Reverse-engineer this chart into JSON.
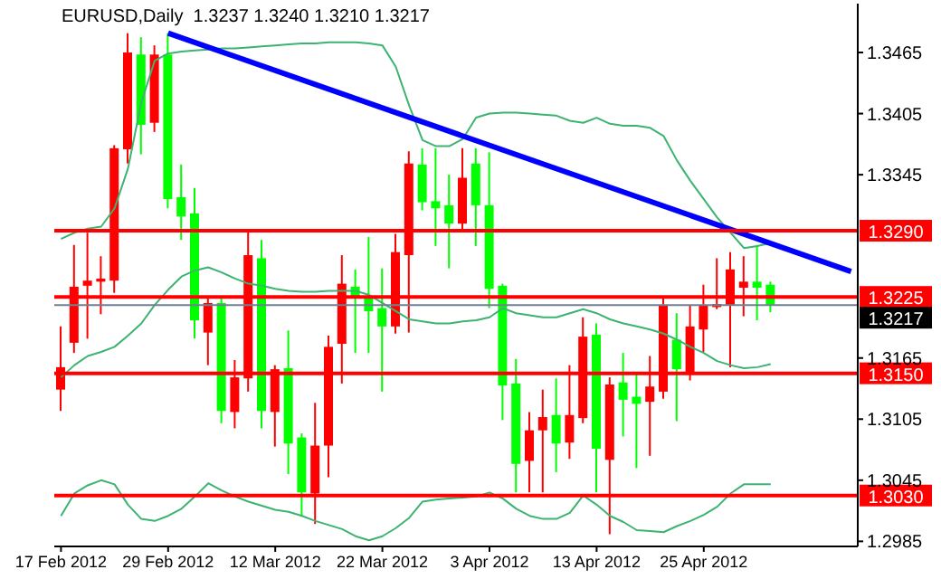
{
  "chart_data": {
    "type": "candlestick",
    "title": "EURUSD,Daily  1.3237 1.3240 1.3210 1.3217",
    "categories": [
      "17 Feb 2012",
      null,
      null,
      null,
      null,
      null,
      null,
      null,
      "29 Feb 2012",
      null,
      null,
      null,
      null,
      null,
      null,
      null,
      "12 Mar 2012",
      null,
      null,
      null,
      null,
      null,
      null,
      null,
      "22 Mar 2012",
      null,
      null,
      null,
      null,
      null,
      null,
      null,
      "3 Apr 2012",
      null,
      null,
      null,
      null,
      null,
      null,
      null,
      "13 Apr 2012",
      null,
      null,
      null,
      null,
      null,
      null,
      null,
      "25 Apr 2012",
      null,
      null,
      null,
      null,
      null,
      null,
      null,
      null,
      null,
      null,
      null
    ],
    "ohlc": [
      [
        1.3134,
        1.3196,
        1.3113,
        1.3156
      ],
      [
        1.318,
        1.3276,
        1.317,
        1.3235
      ],
      [
        1.3236,
        1.3288,
        1.3184,
        1.3241
      ],
      [
        1.324,
        1.3265,
        1.3208,
        1.3243
      ],
      [
        1.3241,
        1.3374,
        1.3229,
        1.3371
      ],
      [
        1.337,
        1.3484,
        1.3356,
        1.3465
      ],
      [
        1.3463,
        1.348,
        1.3365,
        1.3394
      ],
      [
        1.3396,
        1.3472,
        1.3387,
        1.3463
      ],
      [
        1.3463,
        1.3484,
        1.3312,
        1.3321
      ],
      [
        1.3323,
        1.3355,
        1.3281,
        1.3304
      ],
      [
        1.3307,
        1.3332,
        1.3184,
        1.3202
      ],
      [
        1.319,
        1.3226,
        1.3158,
        1.3219
      ],
      [
        1.3219,
        1.3226,
        1.3101,
        1.3113
      ],
      [
        1.3112,
        1.3163,
        1.3096,
        1.3146
      ],
      [
        1.3145,
        1.3289,
        1.3132,
        1.3266
      ],
      [
        1.3263,
        1.3281,
        1.3096,
        1.3113
      ],
      [
        1.3112,
        1.3158,
        1.3078,
        1.3154
      ],
      [
        1.3155,
        1.3192,
        1.3051,
        1.3081
      ],
      [
        1.3087,
        1.3091,
        1.301,
        1.3033
      ],
      [
        1.3032,
        1.3121,
        1.3002,
        1.3079
      ],
      [
        1.3079,
        1.3187,
        1.3048,
        1.3176
      ],
      [
        1.3179,
        1.3266,
        1.314,
        1.3238
      ],
      [
        1.3235,
        1.3252,
        1.317,
        1.3224
      ],
      [
        1.3226,
        1.3284,
        1.317,
        1.3211
      ],
      [
        1.3214,
        1.3253,
        1.3132,
        1.3196
      ],
      [
        1.3196,
        1.3287,
        1.3189,
        1.3269
      ],
      [
        1.3266,
        1.3368,
        1.319,
        1.3356
      ],
      [
        1.3355,
        1.3371,
        1.331,
        1.3318
      ],
      [
        1.3319,
        1.3371,
        1.3275,
        1.3312
      ],
      [
        1.3315,
        1.3345,
        1.3253,
        1.3297
      ],
      [
        1.3297,
        1.3371,
        1.3291,
        1.3342
      ],
      [
        1.3356,
        1.3371,
        1.3275,
        1.3315
      ],
      [
        1.3315,
        1.3367,
        1.3214,
        1.3233
      ],
      [
        1.3236,
        1.3238,
        1.3104,
        1.3138
      ],
      [
        1.314,
        1.3164,
        1.3033,
        1.3061
      ],
      [
        1.3064,
        1.3112,
        1.3033,
        1.3094
      ],
      [
        1.3094,
        1.3134,
        1.3033,
        1.3107
      ],
      [
        1.3109,
        1.3145,
        1.3053,
        1.3081
      ],
      [
        1.3082,
        1.3158,
        1.3066,
        1.3109
      ],
      [
        1.3106,
        1.3205,
        1.3101,
        1.3186
      ],
      [
        1.3188,
        1.3199,
        1.3033,
        1.3076
      ],
      [
        1.3065,
        1.3146,
        1.2992,
        1.3139
      ],
      [
        1.3141,
        1.317,
        1.3088,
        1.3124
      ],
      [
        1.3127,
        1.3149,
        1.3057,
        1.312
      ],
      [
        1.3122,
        1.3167,
        1.3069,
        1.3137
      ],
      [
        1.3132,
        1.3226,
        1.3125,
        1.3217
      ],
      [
        1.3183,
        1.3209,
        1.3103,
        1.3154
      ],
      [
        1.315,
        1.3217,
        1.3143,
        1.3196
      ],
      [
        1.3193,
        1.3237,
        1.3171,
        1.3217
      ],
      [
        1.3215,
        1.3263,
        1.3213,
        1.3218
      ],
      [
        1.3217,
        1.3269,
        1.3156,
        1.3252
      ],
      [
        1.3234,
        1.3265,
        1.3206,
        1.324
      ],
      [
        1.324,
        1.3276,
        1.3202,
        1.3234
      ],
      [
        1.3237,
        1.324,
        1.321,
        1.3217
      ],
      null,
      null,
      null,
      null,
      null,
      null
    ],
    "colors": [
      "#ff0000",
      "#ff0000",
      "#ff0000",
      "#ff0000",
      "#ff0000",
      "#ff0000",
      "#00ff00",
      "#ff0000",
      "#00ff00",
      "#00ff00",
      "#00ff00",
      "#ff0000",
      "#00ff00",
      "#ff0000",
      "#ff0000",
      "#00ff00",
      "#ff0000",
      "#00ff00",
      "#00ff00",
      "#ff0000",
      "#ff0000",
      "#ff0000",
      "#00ff00",
      "#00ff00",
      "#00ff00",
      "#ff0000",
      "#ff0000",
      "#00ff00",
      "#00ff00",
      "#00ff00",
      "#ff0000",
      "#00ff00",
      "#00ff00",
      "#00ff00",
      "#00ff00",
      "#ff0000",
      "#ff0000",
      "#00ff00",
      "#ff0000",
      "#ff0000",
      "#00ff00",
      "#ff0000",
      "#00ff00",
      "#00ff00",
      "#ff0000",
      "#ff0000",
      "#00ff00",
      "#ff0000",
      "#ff0000",
      "#ff0000",
      "#ff0000",
      "#ff0000",
      "#00ff00",
      "#00ff00",
      null,
      null,
      null,
      null,
      null,
      null
    ],
    "series": [
      {
        "type": "line",
        "color": "#3cb371",
        "values": [
          1.3282,
          1.3288,
          1.3292,
          1.3294,
          1.3312,
          1.3351,
          1.3416,
          1.3457,
          1.3464,
          1.3466,
          1.3467,
          1.3468,
          1.3469,
          1.3469,
          1.347,
          1.3471,
          1.3472,
          1.3473,
          1.3474,
          1.3474,
          1.3475,
          1.3475,
          1.3475,
          1.3474,
          1.3472,
          1.3451,
          1.3413,
          1.3379,
          1.3373,
          1.3373,
          1.338,
          1.3401,
          1.3405,
          1.3406,
          1.3406,
          1.3405,
          1.3404,
          1.3403,
          1.3398,
          1.3396,
          1.3401,
          1.3395,
          1.3393,
          1.3393,
          1.3391,
          1.3383,
          1.3359,
          1.3339,
          1.3321,
          1.3303,
          1.3288,
          1.3273,
          1.3275,
          1.3278,
          null,
          null,
          null,
          null,
          null,
          null
        ]
      },
      {
        "type": "line",
        "color": "#3cb371",
        "values": [
          1.3146,
          1.3158,
          1.3167,
          1.3171,
          1.3176,
          1.3187,
          1.3199,
          1.3217,
          1.3232,
          1.3245,
          1.3251,
          1.3254,
          1.3249,
          1.3243,
          1.3238,
          1.3236,
          1.3233,
          1.3231,
          1.323,
          1.323,
          1.3231,
          1.3231,
          1.3231,
          1.3227,
          1.3219,
          1.3211,
          1.3203,
          1.3201,
          1.3199,
          1.3199,
          1.3201,
          1.3202,
          1.3205,
          1.3214,
          1.3209,
          1.3207,
          1.3205,
          1.3205,
          1.3209,
          1.3213,
          1.3209,
          1.3203,
          1.3199,
          1.3196,
          1.3193,
          1.3189,
          1.3183,
          1.3176,
          1.317,
          1.3162,
          1.3158,
          1.3155,
          1.3156,
          1.3159,
          null,
          null,
          null,
          null,
          null,
          null
        ]
      },
      {
        "type": "line",
        "color": "#3cb371",
        "values": [
          1.301,
          1.3032,
          1.304,
          1.3045,
          1.3041,
          1.3021,
          1.3007,
          1.3005,
          1.301,
          1.3017,
          1.3029,
          1.3042,
          1.3035,
          1.3029,
          1.3024,
          1.302,
          1.3016,
          1.3014,
          1.301,
          1.3005,
          1.3001,
          1.2997,
          1.299,
          1.2986,
          1.299,
          1.2998,
          1.3008,
          1.3024,
          1.3026,
          1.3027,
          1.3028,
          1.3029,
          1.3033,
          1.3027,
          1.3017,
          1.301,
          1.3007,
          1.3007,
          1.3013,
          1.303,
          1.3021,
          1.301,
          1.3004,
          1.2996,
          1.2995,
          1.2994,
          1.3,
          1.3005,
          1.3011,
          1.3019,
          1.3032,
          1.3041,
          1.3041,
          1.3041,
          null,
          null,
          null,
          null,
          null,
          null
        ]
      },
      {
        "type": "line",
        "color": "#0000ff",
        "values": [
          null,
          null,
          null,
          null,
          null,
          null,
          null,
          null,
          1.3484,
          null,
          null,
          null,
          null,
          null,
          null,
          null,
          null,
          null,
          null,
          null,
          null,
          null,
          null,
          null,
          null,
          null,
          null,
          null,
          null,
          null,
          null,
          null,
          null,
          null,
          null,
          null,
          null,
          null,
          null,
          null,
          null,
          null,
          null,
          null,
          null,
          null,
          null,
          null,
          null,
          null,
          null,
          null,
          null,
          null,
          null,
          null,
          null,
          null,
          null,
          1.325
        ]
      }
    ],
    "ylim": [
      1.298,
      1.3513
    ],
    "yticks": [
      1.2985,
      1.3045,
      1.3105,
      1.3165,
      1.3345,
      1.3405,
      1.3465
    ],
    "ref_lines": [
      {
        "axis": "y",
        "value": 1.329,
        "label": "1.3290",
        "color": "#ff0000"
      },
      {
        "axis": "y",
        "value": 1.3225,
        "label": "1.3225",
        "color": "#ff0000"
      },
      {
        "axis": "y",
        "value": 1.315,
        "label": "1.3150",
        "color": "#ff0000"
      },
      {
        "axis": "y",
        "value": 1.303,
        "label": "1.3030",
        "color": "#ff0000"
      },
      {
        "axis": "y",
        "value": 1.3217,
        "label": "1.3217",
        "color": "#708090"
      }
    ],
    "grid": false,
    "legend": false
  }
}
